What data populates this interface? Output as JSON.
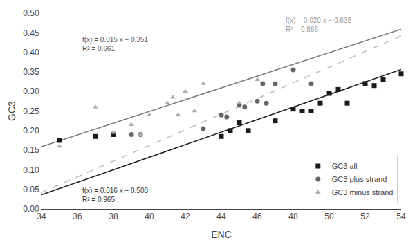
{
  "chart_data": {
    "type": "scatter",
    "xlabel": "ENC",
    "ylabel": "GC3",
    "xlim": [
      34,
      54
    ],
    "ylim": [
      0,
      0.5
    ],
    "xticks": [
      34,
      36,
      38,
      40,
      42,
      44,
      46,
      48,
      50,
      52,
      54
    ],
    "yticks": [
      {
        "value": 0,
        "label": "0.00"
      },
      0.05,
      {
        "value": 0.1,
        "label": "0.10"
      },
      0.15,
      {
        "value": 0.2,
        "label": "0.20"
      },
      0.25,
      {
        "value": 0.3,
        "label": "0.30"
      },
      0.35,
      {
        "value": 0.4,
        "label": "0.40"
      },
      0.45,
      {
        "value": 0.5,
        "label": "0.50"
      }
    ],
    "grid": false,
    "legend": "lower right",
    "series": [
      {
        "type": "line",
        "color": "#1a1a1a",
        "line_style": "solid",
        "x": [
          34,
          54
        ],
        "values": [
          0.036,
          0.356
        ]
      },
      {
        "type": "line",
        "color": "#777777",
        "line_style": "solid",
        "x": [
          34,
          54
        ],
        "values": [
          0.159,
          0.459
        ]
      },
      {
        "type": "line",
        "color": "#bbbbbb",
        "line_style": "dashed",
        "x": [
          34,
          54
        ],
        "values": [
          0.042,
          0.442
        ]
      },
      {
        "type": "scatter",
        "name": "GC3 all",
        "marker": "square",
        "color": "#1a1a1a",
        "x": [
          35,
          37,
          38,
          44,
          44.5,
          45,
          45.5,
          47,
          48,
          48.5,
          49,
          49.5,
          50,
          50.5,
          51,
          52,
          52.5,
          53,
          54
        ],
        "values": [
          0.175,
          0.185,
          0.19,
          0.185,
          0.2,
          0.22,
          0.2,
          0.225,
          0.255,
          0.25,
          0.25,
          0.27,
          0.295,
          0.305,
          0.27,
          0.32,
          0.315,
          0.33,
          0.345
        ]
      },
      {
        "type": "scatter",
        "name": "GC3 plus strand",
        "marker": "circle",
        "color": "#666666",
        "x": [
          39,
          39.5,
          43,
          44,
          44.3,
          45,
          45.3,
          46,
          46.3,
          46.5,
          47,
          48,
          49
        ],
        "values": [
          0.19,
          0.19,
          0.205,
          0.24,
          0.235,
          0.265,
          0.26,
          0.275,
          0.32,
          0.27,
          0.32,
          0.355,
          0.32
        ]
      },
      {
        "type": "scatter",
        "name": "GC3 minus strand",
        "marker": "triangle",
        "color": "#aaaaaa",
        "x": [
          35,
          37,
          38,
          39,
          39.5,
          40,
          41,
          41.3,
          41.6,
          42,
          42.5,
          43,
          45,
          46
        ],
        "values": [
          0.16,
          0.26,
          0.195,
          0.215,
          0.19,
          0.24,
          0.27,
          0.285,
          0.24,
          0.3,
          0.25,
          0.32,
          0.27,
          0.33
        ]
      }
    ],
    "annotations": [
      {
        "text": "f(x) = 0.015 x − 0.351\nR² = 0.661",
        "color": "#555555"
      },
      {
        "text": "f(x) = 0.020 x − 0.638\nR² = 0.886",
        "color": "#999999"
      },
      {
        "text": "f(x) = 0.016 x − 0.508\nR² = 0.965",
        "color": "#333333"
      }
    ]
  }
}
